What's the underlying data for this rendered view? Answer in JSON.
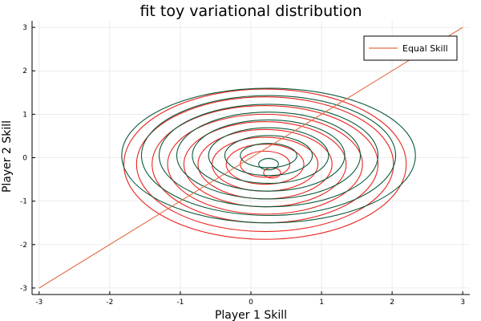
{
  "chart_data": {
    "type": "line",
    "title": "fit toy variational distribution",
    "xlabel": "Player 1 Skill",
    "ylabel": "Player 2 Skill",
    "xlim": [
      -3.1,
      3.1
    ],
    "ylim": [
      -3.15,
      3.15
    ],
    "xticks": [
      -3,
      -2,
      -1,
      0,
      1,
      2,
      3
    ],
    "yticks": [
      -3,
      -2,
      -1,
      0,
      1,
      2,
      3
    ],
    "xtick_labels": [
      "-3",
      "-2",
      "-1",
      "0",
      "1",
      "2",
      "3"
    ],
    "ytick_labels": [
      "-3",
      "-2",
      "-1",
      "0",
      "1",
      "2",
      "3"
    ],
    "grid": true,
    "legend_position": "top-right",
    "legend": [
      {
        "label": "Equal Skill",
        "color": "#e26f46"
      }
    ],
    "equal_skill_line": {
      "name": "Equal Skill",
      "color": "#e26f46",
      "x": [
        -3,
        3
      ],
      "y": [
        -3,
        3
      ]
    },
    "target_contours": {
      "color": "#e8231e",
      "center": [
        0.2,
        -0.15
      ],
      "levels": [
        {
          "rx": 0.12,
          "ry": 0.12,
          "cy": -0.35,
          "cx": 0.3
        },
        {
          "rx": 0.35,
          "ry": 0.3
        },
        {
          "rx": 0.55,
          "ry": 0.46
        },
        {
          "rx": 0.75,
          "ry": 0.62
        },
        {
          "rx": 0.95,
          "ry": 0.8
        },
        {
          "rx": 1.15,
          "ry": 0.98
        },
        {
          "rx": 1.38,
          "ry": 1.15
        },
        {
          "rx": 1.6,
          "ry": 1.35
        },
        {
          "rx": 1.82,
          "ry": 1.55
        },
        {
          "rx": 2.0,
          "ry": 1.73
        }
      ]
    },
    "fitted_contours": {
      "color": "#0b5a3c",
      "center": [
        0.25,
        0.05
      ],
      "levels": [
        {
          "rx": 0.14,
          "ry": 0.13,
          "cy": -0.15
        },
        {
          "rx": 0.4,
          "ry": 0.28
        },
        {
          "rx": 0.62,
          "ry": 0.46
        },
        {
          "rx": 0.85,
          "ry": 0.64
        },
        {
          "rx": 1.08,
          "ry": 0.82
        },
        {
          "rx": 1.3,
          "ry": 1.0
        },
        {
          "rx": 1.55,
          "ry": 1.18
        },
        {
          "rx": 1.8,
          "ry": 1.38
        },
        {
          "rx": 2.08,
          "ry": 1.55
        }
      ]
    }
  }
}
